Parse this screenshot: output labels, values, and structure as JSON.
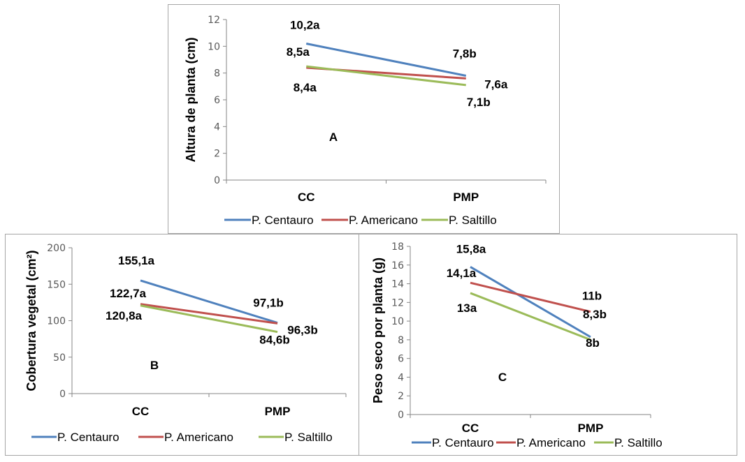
{
  "colors": {
    "P. Centauro": "#4F81BD",
    "P. Americano": "#C0504D",
    "P. Saltillo": "#9BBB59"
  },
  "chart_data": [
    {
      "id": "A",
      "type": "line",
      "panel_letter": "A",
      "title": "",
      "xlabel": "",
      "ylabel": "Altura de planta (cm)",
      "categories": [
        "CC",
        "PMP"
      ],
      "ylim": [
        0,
        12
      ],
      "yticks": [
        0,
        2,
        4,
        6,
        8,
        10,
        12
      ],
      "grid": false,
      "legend": "bottom",
      "series": [
        {
          "name": "P. Centauro",
          "values": [
            10.2,
            7.8
          ],
          "labels": [
            "10,2a",
            "7,8b"
          ]
        },
        {
          "name": "P. Americano",
          "values": [
            8.4,
            7.6
          ],
          "labels": [
            "8,4a",
            "7,6a"
          ]
        },
        {
          "name": "P. Saltillo",
          "values": [
            8.5,
            7.1
          ],
          "labels": [
            "8,5a",
            "7,1b"
          ]
        }
      ]
    },
    {
      "id": "B",
      "type": "line",
      "panel_letter": "B",
      "title": "",
      "xlabel": "",
      "ylabel": "Cobertura vegetal (cm²)",
      "categories": [
        "CC",
        "PMP"
      ],
      "ylim": [
        0,
        200
      ],
      "yticks": [
        0,
        50,
        100,
        150,
        200
      ],
      "grid": false,
      "legend": "bottom",
      "series": [
        {
          "name": "P. Centauro",
          "values": [
            155.1,
            97.1
          ],
          "labels": [
            "155,1a",
            "97,1b"
          ]
        },
        {
          "name": "P. Americano",
          "values": [
            122.7,
            96.3
          ],
          "labels": [
            "122,7a",
            "96,3b"
          ]
        },
        {
          "name": "P. Saltillo",
          "values": [
            120.8,
            84.6
          ],
          "labels": [
            "120,8a",
            "84,6b"
          ]
        }
      ]
    },
    {
      "id": "C",
      "type": "line",
      "panel_letter": "C",
      "title": "",
      "xlabel": "",
      "ylabel": "Peso seco por planta (g)",
      "categories": [
        "CC",
        "PMP"
      ],
      "ylim": [
        0,
        18
      ],
      "yticks": [
        0,
        2,
        4,
        6,
        8,
        10,
        12,
        14,
        16,
        18
      ],
      "grid": false,
      "legend": "bottom",
      "series": [
        {
          "name": "P. Centauro",
          "values": [
            15.8,
            8.3
          ],
          "labels": [
            "15,8a",
            "8,3b"
          ]
        },
        {
          "name": "P. Americano",
          "values": [
            14.1,
            11
          ],
          "labels": [
            "14,1a",
            "11b"
          ]
        },
        {
          "name": "P. Saltillo",
          "values": [
            13,
            8
          ],
          "labels": [
            "13a",
            "8b"
          ]
        }
      ]
    }
  ]
}
